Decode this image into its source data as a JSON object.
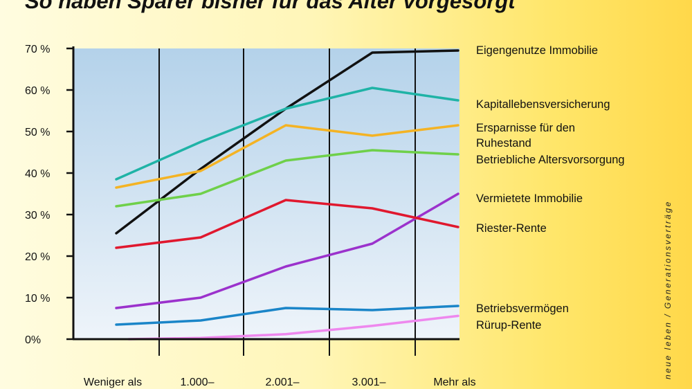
{
  "chart_data": {
    "type": "line",
    "title": "So haben Sparer bisher für das Alter vorgesorgt",
    "xlabel": "",
    "ylabel": "",
    "categories": [
      "Weniger als",
      "1.000–",
      "2.001–",
      "3.001–",
      "Mehr als"
    ],
    "ylim": [
      0,
      70
    ],
    "yticks": [
      0,
      10,
      20,
      30,
      40,
      50,
      60,
      70
    ],
    "ytick_labels": [
      "0%",
      "10 %",
      "20 %",
      "30 %",
      "40 %",
      "50 %",
      "60 %",
      "70 %"
    ],
    "grid": "vertical lines at category boundaries",
    "legend": "right (labels next to line ends)",
    "x": [
      0,
      1,
      2,
      3,
      4
    ],
    "series": [
      {
        "name": "Eigengenutze Immobilie",
        "color": "#111111",
        "values": [
          25.5,
          41,
          55.5,
          69,
          69.5
        ]
      },
      {
        "name": "Kapitallebensversicherung",
        "color": "#1fb3a6",
        "values": [
          38.5,
          47.5,
          55.5,
          60.5,
          57.5
        ]
      },
      {
        "name": "Ersparnisse für den Ruhestand",
        "color": "#f4b324",
        "values": [
          36.5,
          40.5,
          51.5,
          49,
          51.5
        ]
      },
      {
        "name": "Betriebliche Altersvorsorgung",
        "color": "#6fd04a",
        "values": [
          32,
          35,
          43,
          45.5,
          44.5
        ]
      },
      {
        "name": "Vermietete Immobilie",
        "color": "#9b32cc",
        "values": [
          7.5,
          10,
          17.5,
          23,
          35
        ]
      },
      {
        "name": "Riester-Rente",
        "color": "#e0182e",
        "values": [
          22,
          24.5,
          33.5,
          31.5,
          27
        ]
      },
      {
        "name": "Betriebsvermögen",
        "color": "#1a85c8",
        "values": [
          3.5,
          4.5,
          7.5,
          7,
          8
        ]
      },
      {
        "name": "Rürup-Rente",
        "color": "#ee88ee",
        "values": [
          0,
          0.3,
          1.2,
          3.2,
          5.6
        ]
      }
    ]
  },
  "source_credit": "neue leben / Generationsverträge"
}
